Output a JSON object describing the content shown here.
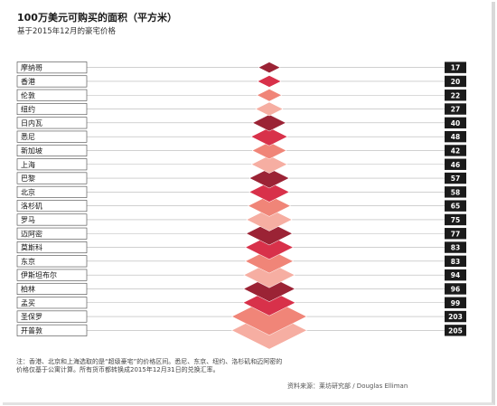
{
  "title": "100万美元可购买的面积（平方米）",
  "subtitle": "基于2015年12月的豪宅价格",
  "note": "注：香港、北京和上海选取的是“超级豪宅”的价格区间。悉尼、东京、纽约、洛杉矶和迈阿密的价格仅基于公寓计算。所有货币都转换成2015年12月31日的兑换汇率。",
  "source": "资料来源：莱坊研究部 / Douglas Elliman",
  "colors": {
    "dark": "#9b2335",
    "mid": "#d8314a",
    "light": "#f08578",
    "pale": "#f6aea2"
  },
  "chart_data": {
    "type": "bar",
    "title": "100万美元可购买的面积（平方米）",
    "subtitle": "基于2015年12月的豪宅价格",
    "categories": [
      "摩纳哥",
      "香港",
      "伦敦",
      "纽约",
      "日内瓦",
      "悉尼",
      "新加坡",
      "上海",
      "巴黎",
      "北京",
      "洛杉矶",
      "罗马",
      "迈阿密",
      "莫斯科",
      "东京",
      "伊斯坦布尔",
      "柏林",
      "孟买",
      "圣保罗",
      "开普敦"
    ],
    "values": [
      17,
      20,
      22,
      27,
      40,
      48,
      42,
      46,
      57,
      58,
      65,
      75,
      77,
      83,
      83,
      94,
      96,
      99,
      203,
      205
    ],
    "value_labels": [
      "17",
      "20",
      "22",
      "27",
      "40",
      "48",
      "42",
      "46",
      "57",
      "58",
      "65",
      "75",
      "77",
      "83",
      "83",
      "94",
      "96",
      "99",
      "203",
      "205"
    ],
    "unit": "平方米"
  }
}
